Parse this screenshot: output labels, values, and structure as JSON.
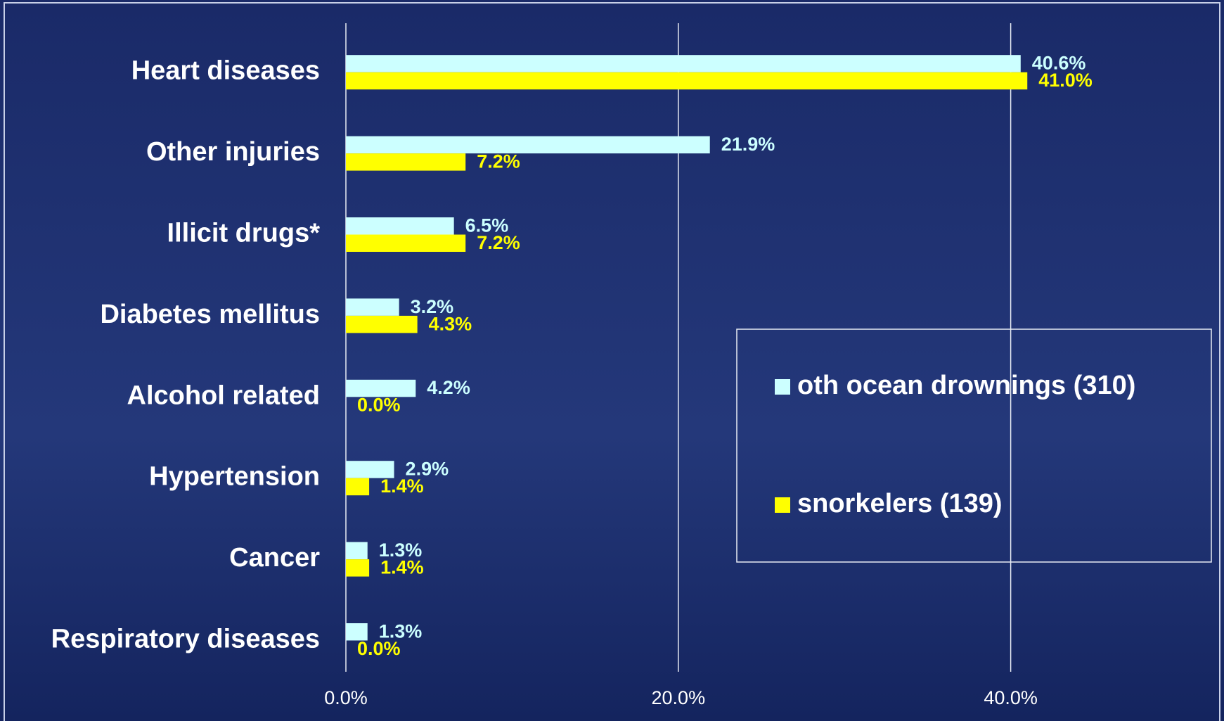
{
  "chart_data": {
    "type": "hbar",
    "categories": [
      "Heart diseases",
      "Other injuries",
      "Illicit drugs*",
      "Diabetes mellitus",
      "Alcohol related",
      "Hypertension",
      "Cancer",
      "Respiratory diseases"
    ],
    "series": [
      {
        "name": "oth ocean drownings (310)",
        "color": "#ccffff",
        "values": [
          40.6,
          21.9,
          6.5,
          3.2,
          4.2,
          2.9,
          1.3,
          1.3
        ],
        "value_labels": [
          "40.6%",
          "21.9%",
          "6.5%",
          "3.2%",
          "4.2%",
          "2.9%",
          "1.3%",
          "1.3%"
        ]
      },
      {
        "name": "snorkelers (139)",
        "color": "#ffff00",
        "values": [
          41.0,
          7.2,
          7.2,
          4.3,
          0.0,
          1.4,
          1.4,
          0.0
        ],
        "value_labels": [
          "41.0%",
          "7.2%",
          "7.2%",
          "4.3%",
          "0.0%",
          "1.4%",
          "1.4%",
          "0.0%"
        ]
      }
    ],
    "xlim": [
      0,
      50
    ],
    "xticks": [
      {
        "value": 0,
        "label": "0.0%"
      },
      {
        "value": 20,
        "label": "20.0%"
      },
      {
        "value": 40,
        "label": "40.0%"
      }
    ],
    "grid": true,
    "legend": "center-right"
  }
}
